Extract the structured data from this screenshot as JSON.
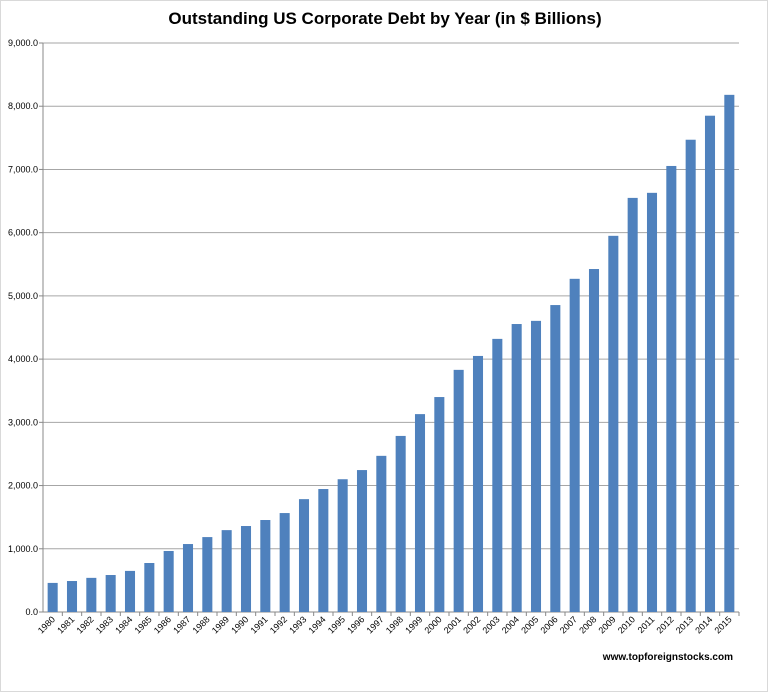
{
  "chart_data": {
    "type": "bar",
    "title": "Outstanding US Corporate Debt by Year (in $ Billions)",
    "xlabel": "",
    "ylabel": "",
    "ylim": [
      0,
      9000
    ],
    "yticks": [
      "0.0",
      "1,000.0",
      "2,000.0",
      "3,000.0",
      "4,000.0",
      "5,000.0",
      "6,000.0",
      "7,000.0",
      "8,000.0",
      "9,000.0"
    ],
    "grid": true,
    "bar_color": "#4f81bd",
    "categories": [
      "1980",
      "1981",
      "1982",
      "1983",
      "1984",
      "1985",
      "1986",
      "1987",
      "1988",
      "1989",
      "1990",
      "1991",
      "1992",
      "1993",
      "1994",
      "1995",
      "1996",
      "1997",
      "1998",
      "1999",
      "2000",
      "2001",
      "2002",
      "2003",
      "2004",
      "2005",
      "2006",
      "2007",
      "2008",
      "2009",
      "2010",
      "2011",
      "2012",
      "2013",
      "2014",
      "2015"
    ],
    "values": [
      460,
      490,
      540,
      585,
      650,
      775,
      965,
      1075,
      1185,
      1295,
      1360,
      1455,
      1565,
      1785,
      1945,
      2100,
      2245,
      2470,
      2785,
      3130,
      3400,
      3830,
      4050,
      4320,
      4555,
      4605,
      4855,
      5270,
      5425,
      5950,
      6550,
      6630,
      7055,
      7470,
      7850,
      8180
    ]
  },
  "source": "www.topforeignstocks.com"
}
